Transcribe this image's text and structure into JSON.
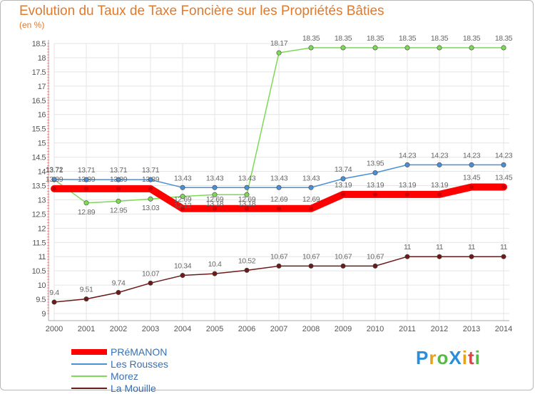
{
  "logo": {
    "p": "P",
    "r": "r",
    "o": "o",
    "x": "X",
    "i": "i",
    "t": "t",
    "i2": "i"
  },
  "chart_data": {
    "type": "line",
    "title": "Evolution du Taux de Taxe Foncière sur les Propriétés Bâties",
    "ylabel": "(en %)",
    "xlabel": "",
    "ylim": [
      9,
      18.5
    ],
    "yticks": [
      "9",
      "9.5",
      "10",
      "10.5",
      "11",
      "11.5",
      "12",
      "12.5",
      "13",
      "13.5",
      "14",
      "14.5",
      "15",
      "15.5",
      "16",
      "16.5",
      "17",
      "17.5",
      "18",
      "18.5"
    ],
    "categories": [
      "2000",
      "2001",
      "2002",
      "2003",
      "2004",
      "2005",
      "2006",
      "2007",
      "2008",
      "2009",
      "2010",
      "2011",
      "2012",
      "2013",
      "2014"
    ],
    "series": [
      {
        "name": "PRéMANON",
        "color": "#ff0000",
        "values": [
          13.39,
          13.39,
          13.39,
          13.39,
          12.69,
          12.69,
          12.69,
          12.69,
          12.69,
          13.19,
          13.19,
          13.19,
          13.19,
          13.45,
          13.45
        ],
        "labels": [
          "13.39",
          "13.39",
          "13.39",
          "13.39",
          "12.69",
          "12.69",
          "12.69",
          "12.69",
          "12.69",
          "13.19",
          "13.19",
          "13.19",
          "13.19",
          "13.45",
          "13.45"
        ]
      },
      {
        "name": "Les Rousses",
        "color": "#4a90d9",
        "values": [
          13.72,
          13.71,
          13.71,
          13.71,
          13.43,
          13.43,
          13.43,
          13.43,
          13.43,
          13.74,
          13.95,
          14.23,
          14.23,
          14.23,
          14.23
        ],
        "labels": [
          "13.72",
          "13.71",
          "13.71",
          "13.71",
          "13.43",
          "13.43",
          "13.43",
          "13.43",
          "13.43",
          "13.74",
          "13.95",
          "14.23",
          "14.23",
          "14.23",
          "14.23"
        ]
      },
      {
        "name": "Morez",
        "color": "#7ed957",
        "values": [
          13.71,
          12.89,
          12.95,
          13.03,
          13.12,
          13.18,
          13.18,
          18.17,
          18.35,
          18.35,
          18.35,
          18.35,
          18.35,
          18.35,
          18.35
        ],
        "labels": [
          "13.71",
          "12.89",
          "12.95",
          "13.03",
          "13.12",
          "13.18",
          "13.18",
          "18.17",
          "18.35",
          "18.35",
          "18.35",
          "18.35",
          "18.35",
          "18.35",
          "18.35"
        ]
      },
      {
        "name": "La Mouille",
        "color": "#6b1a1a",
        "values": [
          9.4,
          9.51,
          9.74,
          10.07,
          10.34,
          10.4,
          10.52,
          10.67,
          10.67,
          10.67,
          10.67,
          11,
          11,
          11,
          11
        ],
        "labels": [
          "9.4",
          "9.51",
          "9.74",
          "10.07",
          "10.34",
          "10.4",
          "10.52",
          "10.67",
          "10.67",
          "10.67",
          "10.67",
          "11",
          "11",
          "11",
          "11"
        ]
      }
    ]
  }
}
